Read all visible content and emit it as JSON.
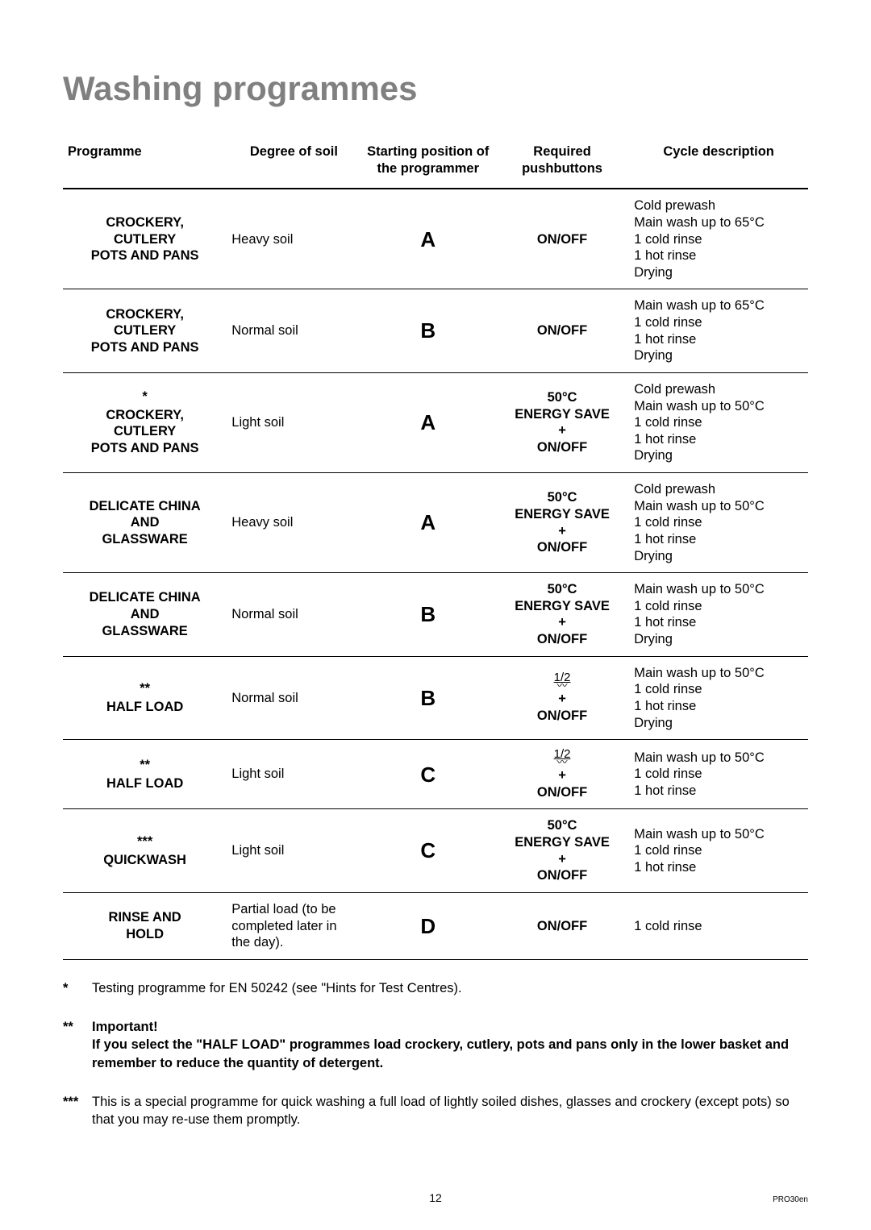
{
  "page": {
    "title": "Washing programmes",
    "number": "12",
    "doc_code": "PRO30en"
  },
  "table": {
    "headers": {
      "programme": "Programme",
      "soil": "Degree of soil",
      "start": "Starting position of the programmer",
      "push": "Required pushbuttons",
      "cycle": "Cycle description"
    },
    "rows": [
      {
        "note_mark": "",
        "programme_lines": [
          "CROCKERY,",
          "CUTLERY",
          "POTS AND PANS"
        ],
        "soil": "Heavy soil",
        "start": "A",
        "push_type": "plain",
        "push_lines": [
          "ON/OFF"
        ],
        "cycle_lines": [
          "Cold prewash",
          "Main wash up to 65°C",
          "1 cold rinse",
          "1 hot rinse",
          "Drying"
        ]
      },
      {
        "note_mark": "",
        "programme_lines": [
          "CROCKERY,",
          "CUTLERY",
          "POTS AND PANS"
        ],
        "soil": "Normal soil",
        "start": "B",
        "push_type": "plain",
        "push_lines": [
          "ON/OFF"
        ],
        "cycle_lines": [
          "Main wash up to 65°C",
          "1 cold rinse",
          "1 hot rinse",
          "Drying"
        ]
      },
      {
        "note_mark": "*",
        "programme_lines": [
          "CROCKERY,",
          "CUTLERY",
          "POTS AND PANS"
        ],
        "soil": "Light soil",
        "start": "A",
        "push_type": "energy",
        "push_lines": [
          "50°C",
          "ENERGY SAVE",
          "+",
          "ON/OFF"
        ],
        "cycle_lines": [
          "Cold prewash",
          "Main wash up to 50°C",
          "1 cold rinse",
          "1 hot rinse",
          "Drying"
        ]
      },
      {
        "note_mark": "",
        "programme_lines": [
          "DELICATE CHINA",
          "AND",
          "GLASSWARE"
        ],
        "soil": "Heavy soil",
        "start": "A",
        "push_type": "energy",
        "push_lines": [
          "50°C",
          "ENERGY SAVE",
          "+",
          "ON/OFF"
        ],
        "cycle_lines": [
          "Cold prewash",
          "Main wash up to 50°C",
          "1 cold rinse",
          "1 hot rinse",
          "Drying"
        ]
      },
      {
        "note_mark": "",
        "programme_lines": [
          "DELICATE CHINA",
          "AND",
          "GLASSWARE"
        ],
        "soil": "Normal soil",
        "start": "B",
        "push_type": "energy",
        "push_lines": [
          "50°C",
          "ENERGY SAVE",
          "+",
          "ON/OFF"
        ],
        "cycle_lines": [
          "Main wash up to 50°C",
          "1 cold rinse",
          "1 hot rinse",
          "Drying"
        ]
      },
      {
        "note_mark": "**",
        "programme_lines": [
          "HALF LOAD"
        ],
        "soil": "Normal soil",
        "start": "B",
        "push_type": "half",
        "push_lines": [
          "+",
          "ON/OFF"
        ],
        "half_icon_top": "1/2",
        "cycle_lines": [
          "Main wash up to 50°C",
          "1 cold rinse",
          "1 hot rinse",
          "Drying"
        ]
      },
      {
        "note_mark": "**",
        "programme_lines": [
          "HALF LOAD"
        ],
        "soil": "Light soil",
        "start": "C",
        "push_type": "half",
        "push_lines": [
          "+",
          "ON/OFF"
        ],
        "half_icon_top": "1/2",
        "cycle_lines": [
          "Main wash up to 50°C",
          "1 cold rinse",
          "1 hot rinse"
        ]
      },
      {
        "note_mark": "***",
        "programme_lines": [
          "QUICKWASH"
        ],
        "soil": "Light soil",
        "start": "C",
        "push_type": "energy",
        "push_lines": [
          "50°C",
          "ENERGY SAVE",
          "+",
          "ON/OFF"
        ],
        "cycle_lines": [
          "Main wash up to 50°C",
          "1 cold rinse",
          "1 hot rinse"
        ]
      },
      {
        "note_mark": "",
        "programme_lines": [
          "RINSE AND",
          "HOLD"
        ],
        "soil": "Partial load (to be completed later in the day).",
        "start": "D",
        "push_type": "plain",
        "push_lines": [
          "ON/OFF"
        ],
        "cycle_lines": [
          "1 cold rinse"
        ]
      }
    ]
  },
  "footnotes": [
    {
      "mark": "*",
      "heading": "",
      "body_bold": false,
      "body": "Testing programme for EN 50242 (see \"Hints for Test Centres)."
    },
    {
      "mark": "**",
      "heading": "Important!",
      "body_bold": true,
      "body": "If you select the \"HALF LOAD\" programmes load crockery, cutlery, pots and pans only in the lower basket and remember to reduce the quantity of detergent."
    },
    {
      "mark": "***",
      "heading": "",
      "body_bold": false,
      "body": "This is a special programme for quick washing a full load of lightly soiled dishes, glasses and crockery (except pots) so that you may re-use them promptly."
    }
  ]
}
